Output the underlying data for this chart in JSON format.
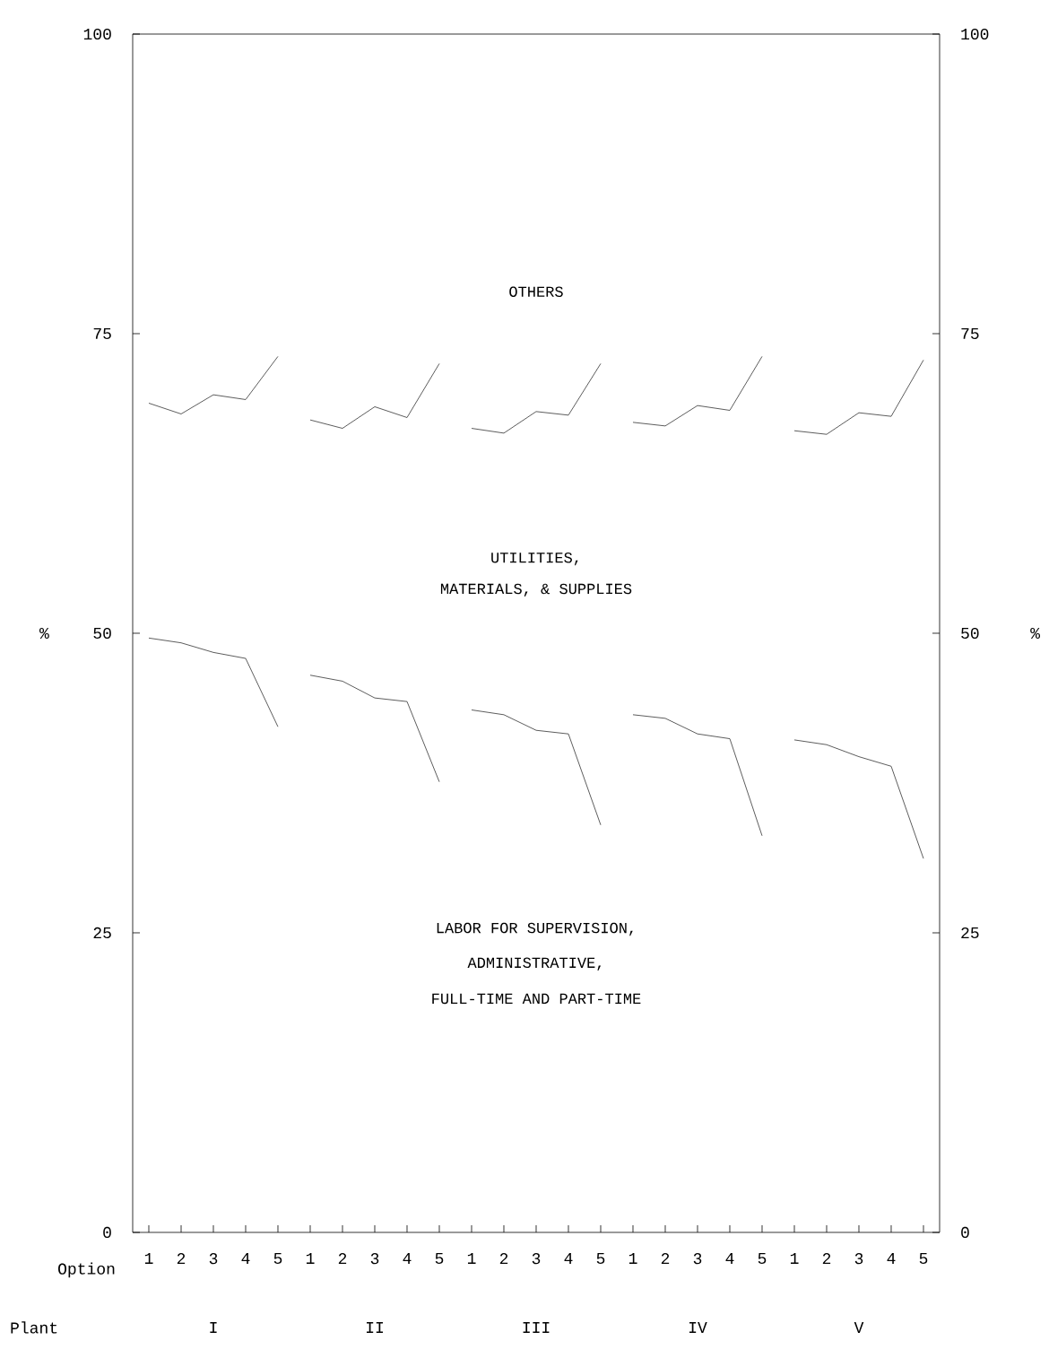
{
  "chart_data": {
    "type": "line",
    "categories": [
      "1",
      "2",
      "3",
      "4",
      "5",
      "1",
      "2",
      "3",
      "4",
      "5",
      "1",
      "2",
      "3",
      "4",
      "5",
      "1",
      "2",
      "3",
      "4",
      "5",
      "1",
      "2",
      "3",
      "4",
      "5"
    ],
    "xlabel": "Option",
    "ylabel": "%",
    "y2label": "%",
    "ylim": [
      0,
      100
    ],
    "yticks": [
      0,
      25,
      50,
      75,
      100
    ],
    "y2lim": [
      0,
      100
    ],
    "y2ticks": [
      0,
      25,
      50,
      75,
      100
    ],
    "grid": false,
    "marker": "none",
    "line_style": "solid",
    "series": [
      {
        "color": "#333333",
        "values": [
          69.2,
          68.3,
          69.9,
          69.5,
          73.1,
          null,
          null,
          null,
          null,
          null,
          null,
          null,
          null,
          null,
          null,
          null,
          null,
          null,
          null,
          null,
          null,
          null,
          null,
          null,
          null
        ]
      },
      {
        "color": "#333333",
        "values": [
          null,
          null,
          null,
          null,
          null,
          67.8,
          67.1,
          68.9,
          68.0,
          72.5,
          null,
          null,
          null,
          null,
          null,
          null,
          null,
          null,
          null,
          null,
          null,
          null,
          null,
          null,
          null
        ]
      },
      {
        "color": "#333333",
        "values": [
          null,
          null,
          null,
          null,
          null,
          null,
          null,
          null,
          null,
          null,
          67.1,
          66.7,
          68.5,
          68.2,
          72.5,
          null,
          null,
          null,
          null,
          null,
          null,
          null,
          null,
          null,
          null
        ]
      },
      {
        "color": "#333333",
        "values": [
          null,
          null,
          null,
          null,
          null,
          null,
          null,
          null,
          null,
          null,
          null,
          null,
          null,
          null,
          null,
          67.6,
          67.3,
          69.0,
          68.6,
          73.1,
          null,
          null,
          null,
          null,
          null
        ]
      },
      {
        "color": "#333333",
        "values": [
          null,
          null,
          null,
          null,
          null,
          null,
          null,
          null,
          null,
          null,
          null,
          null,
          null,
          null,
          null,
          null,
          null,
          null,
          null,
          null,
          66.9,
          66.6,
          68.4,
          68.1,
          72.8
        ]
      },
      {
        "color": "#333333",
        "values": [
          49.6,
          49.2,
          48.4,
          47.9,
          42.2,
          null,
          null,
          null,
          null,
          null,
          null,
          null,
          null,
          null,
          null,
          null,
          null,
          null,
          null,
          null,
          null,
          null,
          null,
          null,
          null
        ]
      },
      {
        "color": "#333333",
        "values": [
          null,
          null,
          null,
          null,
          null,
          46.5,
          46.0,
          44.6,
          44.3,
          37.6,
          null,
          null,
          null,
          null,
          null,
          null,
          null,
          null,
          null,
          null,
          null,
          null,
          null,
          null,
          null
        ]
      },
      {
        "color": "#333333",
        "values": [
          null,
          null,
          null,
          null,
          null,
          null,
          null,
          null,
          null,
          null,
          43.6,
          43.2,
          41.9,
          41.6,
          34.0,
          null,
          null,
          null,
          null,
          null,
          null,
          null,
          null,
          null,
          null
        ]
      },
      {
        "color": "#333333",
        "values": [
          null,
          null,
          null,
          null,
          null,
          null,
          null,
          null,
          null,
          null,
          null,
          null,
          null,
          null,
          null,
          43.2,
          42.9,
          41.6,
          41.2,
          33.1,
          null,
          null,
          null,
          null,
          null
        ]
      },
      {
        "color": "#333333",
        "values": [
          null,
          null,
          null,
          null,
          null,
          null,
          null,
          null,
          null,
          null,
          null,
          null,
          null,
          null,
          null,
          null,
          null,
          null,
          null,
          null,
          41.1,
          40.7,
          39.7,
          38.9,
          31.2
        ]
      }
    ],
    "annotations": [
      "OTHERS",
      "UTILITIES,",
      "MATERIALS, & SUPPLIES",
      "LABOR FOR SUPERVISION,",
      "ADMINISTRATIVE,",
      "FULL-TIME AND PART-TIME",
      "Plant",
      "I",
      "II",
      "III",
      "IV",
      "V"
    ]
  }
}
